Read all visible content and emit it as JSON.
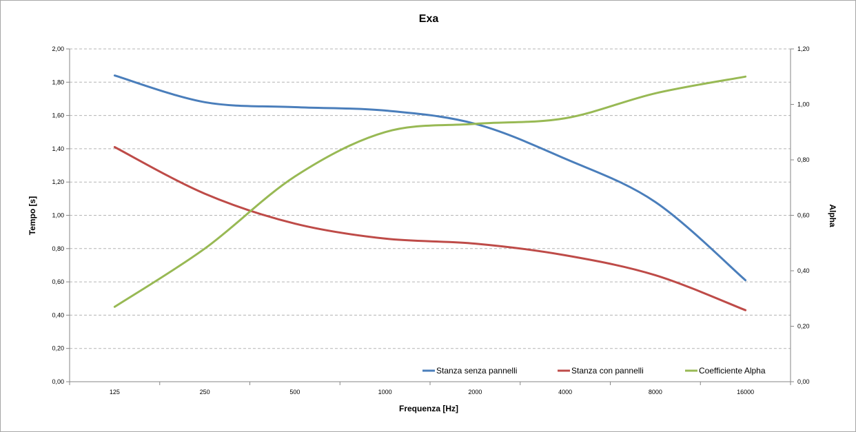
{
  "chart_data": {
    "type": "line",
    "title": "Exa",
    "xlabel": "Frequenza [Hz]",
    "ylabel": "Tempo [s]",
    "y2label": "Alpha",
    "categories": [
      "125",
      "250",
      "500",
      "1000",
      "2000",
      "4000",
      "8000",
      "16000"
    ],
    "ylim": [
      0,
      2
    ],
    "y2lim": [
      0,
      1.2
    ],
    "y_ticks": [
      "0,00",
      "0,20",
      "0,40",
      "0,60",
      "0,80",
      "1,00",
      "1,20",
      "1,40",
      "1,60",
      "1,80",
      "2,00"
    ],
    "y2_ticks": [
      "0,00",
      "0,20",
      "0,40",
      "0,60",
      "0,80",
      "1,00",
      "1,20"
    ],
    "grid": "horizontal dashed",
    "legend_position": "bottom-right",
    "series": [
      {
        "name": "Stanza senza pannelli",
        "axis": "left",
        "color": "#4a7ebb",
        "values": [
          1.84,
          1.68,
          1.65,
          1.63,
          1.55,
          1.34,
          1.08,
          0.61
        ]
      },
      {
        "name": "Stanza con pannelli",
        "axis": "left",
        "color": "#be4b48",
        "values": [
          1.41,
          1.13,
          0.95,
          0.86,
          0.83,
          0.76,
          0.64,
          0.43
        ]
      },
      {
        "name": "Coefficiente Alpha",
        "axis": "right",
        "color": "#98b954",
        "values": [
          0.27,
          0.48,
          0.74,
          0.9,
          0.93,
          0.95,
          1.04,
          1.1
        ]
      }
    ]
  }
}
